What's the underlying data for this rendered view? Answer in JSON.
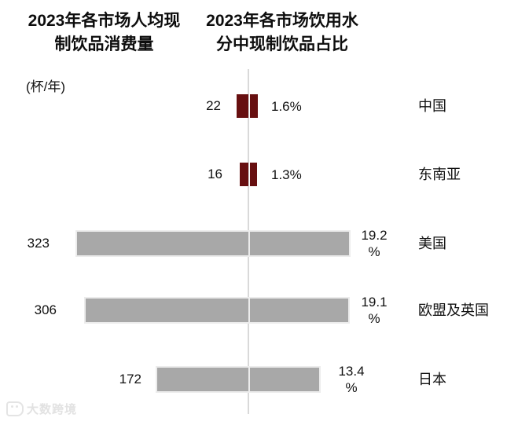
{
  "titles": {
    "left": "2023年各市场人均现\n制饮品消费量",
    "right": "2023年各市场饮用水\n分中现制饮品占比"
  },
  "unit_label": "(杯/年)",
  "watermark": "大数跨境",
  "rows": [
    {
      "category": "中国",
      "left_label": "22",
      "pct_line1": "1.6%",
      "pct_line2": "",
      "highlight": true
    },
    {
      "category": "东南亚",
      "left_label": "16",
      "pct_line1": "1.3%",
      "pct_line2": "",
      "highlight": true
    },
    {
      "category": "美国",
      "left_label": "323",
      "pct_line1": "19.2",
      "pct_line2": "%",
      "highlight": false
    },
    {
      "category": "欧盟及英国",
      "left_label": "306",
      "pct_line1": "19.1",
      "pct_line2": "%",
      "highlight": false
    },
    {
      "category": "日本",
      "left_label": "172",
      "pct_line1": "13.4",
      "pct_line2": "%",
      "highlight": false
    }
  ],
  "chart_data": {
    "type": "bar",
    "subtype": "tornado-paired-horizontal",
    "categories": [
      "中国",
      "东南亚",
      "美国",
      "欧盟及英国",
      "日本"
    ],
    "series": [
      {
        "name": "2023年各市场人均现制饮品消费量",
        "unit": "杯/年",
        "direction": "left",
        "values": [
          22,
          16,
          323,
          306,
          172
        ]
      },
      {
        "name": "2023年各市场饮用水分中现制饮品占比",
        "unit": "%",
        "direction": "right",
        "values": [
          1.6,
          1.3,
          19.2,
          19.1,
          13.4
        ]
      }
    ],
    "highlighted_categories": [
      "中国",
      "东南亚"
    ],
    "highlight_color": "#670f10",
    "base_color": "#a8a8a8",
    "axis_line_color": "#d9d9d9",
    "grid": false,
    "legend": "none",
    "data_labels": "outside-end"
  }
}
